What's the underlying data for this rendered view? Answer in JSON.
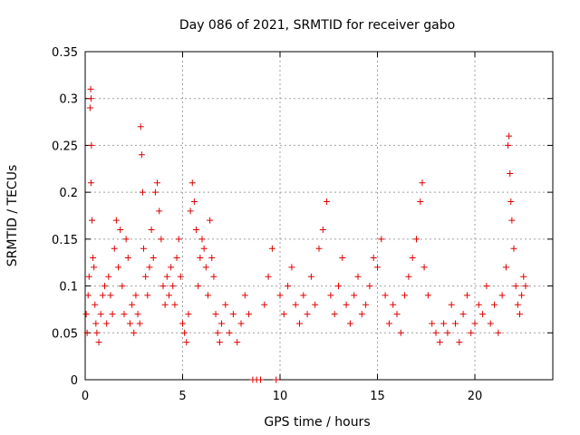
{
  "chart_data": {
    "type": "scatter",
    "title": "Day 086 of 2021, SRMTID for receiver gabo",
    "xlabel": "GPS time / hours",
    "ylabel": "SRMTID / TECUs",
    "xlim": [
      0,
      24
    ],
    "ylim": [
      0,
      0.35
    ],
    "grid": true,
    "legend": "none",
    "marker": "+",
    "marker_color": "#e00000",
    "grid_color": "#a0a0a0",
    "x_ticks": [
      0,
      5,
      10,
      15,
      20
    ],
    "x_tick_labels": [
      "0",
      "5",
      "10",
      "15",
      "20"
    ],
    "y_ticks": [
      0,
      0.05,
      0.1,
      0.15,
      0.2,
      0.25,
      0.3,
      0.35
    ],
    "y_tick_labels": [
      "0",
      "0.05",
      "0.1",
      "0.15",
      "0.2",
      "0.25",
      "0.3",
      "0.35"
    ],
    "series": [
      {
        "name": "SRMTID",
        "points": [
          [
            0.05,
            0.07
          ],
          [
            0.1,
            0.05
          ],
          [
            0.15,
            0.09
          ],
          [
            0.2,
            0.11
          ],
          [
            0.25,
            0.29
          ],
          [
            0.28,
            0.31
          ],
          [
            0.3,
            0.3
          ],
          [
            0.32,
            0.25
          ],
          [
            0.3,
            0.21
          ],
          [
            0.35,
            0.17
          ],
          [
            0.4,
            0.13
          ],
          [
            0.45,
            0.12
          ],
          [
            0.5,
            0.08
          ],
          [
            0.55,
            0.06
          ],
          [
            0.6,
            0.05
          ],
          [
            0.7,
            0.04
          ],
          [
            0.8,
            0.07
          ],
          [
            0.9,
            0.09
          ],
          [
            1.0,
            0.1
          ],
          [
            1.1,
            0.06
          ],
          [
            1.2,
            0.11
          ],
          [
            1.3,
            0.09
          ],
          [
            1.4,
            0.07
          ],
          [
            1.5,
            0.14
          ],
          [
            1.6,
            0.17
          ],
          [
            1.7,
            0.12
          ],
          [
            1.8,
            0.16
          ],
          [
            1.9,
            0.1
          ],
          [
            2.0,
            0.07
          ],
          [
            2.1,
            0.15
          ],
          [
            2.2,
            0.13
          ],
          [
            2.3,
            0.06
          ],
          [
            2.4,
            0.08
          ],
          [
            2.5,
            0.05
          ],
          [
            2.6,
            0.09
          ],
          [
            2.7,
            0.07
          ],
          [
            2.8,
            0.06
          ],
          [
            2.85,
            0.27
          ],
          [
            2.9,
            0.24
          ],
          [
            2.95,
            0.2
          ],
          [
            3.0,
            0.14
          ],
          [
            3.1,
            0.11
          ],
          [
            3.2,
            0.09
          ],
          [
            3.3,
            0.12
          ],
          [
            3.4,
            0.16
          ],
          [
            3.5,
            0.13
          ],
          [
            3.6,
            0.2
          ],
          [
            3.7,
            0.21
          ],
          [
            3.8,
            0.18
          ],
          [
            3.9,
            0.15
          ],
          [
            4.0,
            0.1
          ],
          [
            4.1,
            0.08
          ],
          [
            4.2,
            0.11
          ],
          [
            4.3,
            0.09
          ],
          [
            4.4,
            0.12
          ],
          [
            4.5,
            0.1
          ],
          [
            4.6,
            0.08
          ],
          [
            4.7,
            0.13
          ],
          [
            4.8,
            0.15
          ],
          [
            4.9,
            0.11
          ],
          [
            5.0,
            0.06
          ],
          [
            5.1,
            0.05
          ],
          [
            5.2,
            0.04
          ],
          [
            5.3,
            0.07
          ],
          [
            5.4,
            0.18
          ],
          [
            5.5,
            0.21
          ],
          [
            5.6,
            0.19
          ],
          [
            5.7,
            0.16
          ],
          [
            5.8,
            0.1
          ],
          [
            5.9,
            0.13
          ],
          [
            6.0,
            0.15
          ],
          [
            6.1,
            0.14
          ],
          [
            6.2,
            0.12
          ],
          [
            6.3,
            0.09
          ],
          [
            6.4,
            0.17
          ],
          [
            6.5,
            0.13
          ],
          [
            6.6,
            0.11
          ],
          [
            6.7,
            0.07
          ],
          [
            6.8,
            0.05
          ],
          [
            6.9,
            0.04
          ],
          [
            7.0,
            0.06
          ],
          [
            7.2,
            0.08
          ],
          [
            7.4,
            0.05
          ],
          [
            7.6,
            0.07
          ],
          [
            7.8,
            0.04
          ],
          [
            8.0,
            0.06
          ],
          [
            8.2,
            0.09
          ],
          [
            8.4,
            0.07
          ],
          [
            8.6,
            0.0
          ],
          [
            8.8,
            0.0
          ],
          [
            9.0,
            0.0
          ],
          [
            9.2,
            0.08
          ],
          [
            9.4,
            0.11
          ],
          [
            9.6,
            0.14
          ],
          [
            9.8,
            0.0
          ],
          [
            10.0,
            0.09
          ],
          [
            10.2,
            0.07
          ],
          [
            10.4,
            0.1
          ],
          [
            10.6,
            0.12
          ],
          [
            10.8,
            0.08
          ],
          [
            11.0,
            0.06
          ],
          [
            11.2,
            0.09
          ],
          [
            11.4,
            0.07
          ],
          [
            11.6,
            0.11
          ],
          [
            11.8,
            0.08
          ],
          [
            12.0,
            0.14
          ],
          [
            12.2,
            0.16
          ],
          [
            12.4,
            0.19
          ],
          [
            12.6,
            0.09
          ],
          [
            12.8,
            0.07
          ],
          [
            13.0,
            0.1
          ],
          [
            13.2,
            0.13
          ],
          [
            13.4,
            0.08
          ],
          [
            13.6,
            0.06
          ],
          [
            13.8,
            0.09
          ],
          [
            14.0,
            0.11
          ],
          [
            14.2,
            0.07
          ],
          [
            14.4,
            0.08
          ],
          [
            14.6,
            0.1
          ],
          [
            14.8,
            0.13
          ],
          [
            15.0,
            0.12
          ],
          [
            15.2,
            0.15
          ],
          [
            15.4,
            0.09
          ],
          [
            15.6,
            0.06
          ],
          [
            15.8,
            0.08
          ],
          [
            16.0,
            0.07
          ],
          [
            16.2,
            0.05
          ],
          [
            16.4,
            0.09
          ],
          [
            16.6,
            0.11
          ],
          [
            16.8,
            0.13
          ],
          [
            17.0,
            0.15
          ],
          [
            17.2,
            0.19
          ],
          [
            17.3,
            0.21
          ],
          [
            17.4,
            0.12
          ],
          [
            17.6,
            0.09
          ],
          [
            17.8,
            0.06
          ],
          [
            18.0,
            0.05
          ],
          [
            18.2,
            0.04
          ],
          [
            18.4,
            0.06
          ],
          [
            18.6,
            0.05
          ],
          [
            18.8,
            0.08
          ],
          [
            19.0,
            0.06
          ],
          [
            19.2,
            0.04
          ],
          [
            19.4,
            0.07
          ],
          [
            19.6,
            0.09
          ],
          [
            19.8,
            0.05
          ],
          [
            20.0,
            0.06
          ],
          [
            20.2,
            0.08
          ],
          [
            20.4,
            0.07
          ],
          [
            20.6,
            0.1
          ],
          [
            20.8,
            0.06
          ],
          [
            21.0,
            0.08
          ],
          [
            21.2,
            0.05
          ],
          [
            21.4,
            0.09
          ],
          [
            21.6,
            0.12
          ],
          [
            21.7,
            0.25
          ],
          [
            21.75,
            0.26
          ],
          [
            21.8,
            0.22
          ],
          [
            21.85,
            0.19
          ],
          [
            21.9,
            0.17
          ],
          [
            22.0,
            0.14
          ],
          [
            22.1,
            0.1
          ],
          [
            22.2,
            0.08
          ],
          [
            22.3,
            0.07
          ],
          [
            22.4,
            0.09
          ],
          [
            22.5,
            0.11
          ],
          [
            22.6,
            0.1
          ]
        ]
      }
    ]
  }
}
